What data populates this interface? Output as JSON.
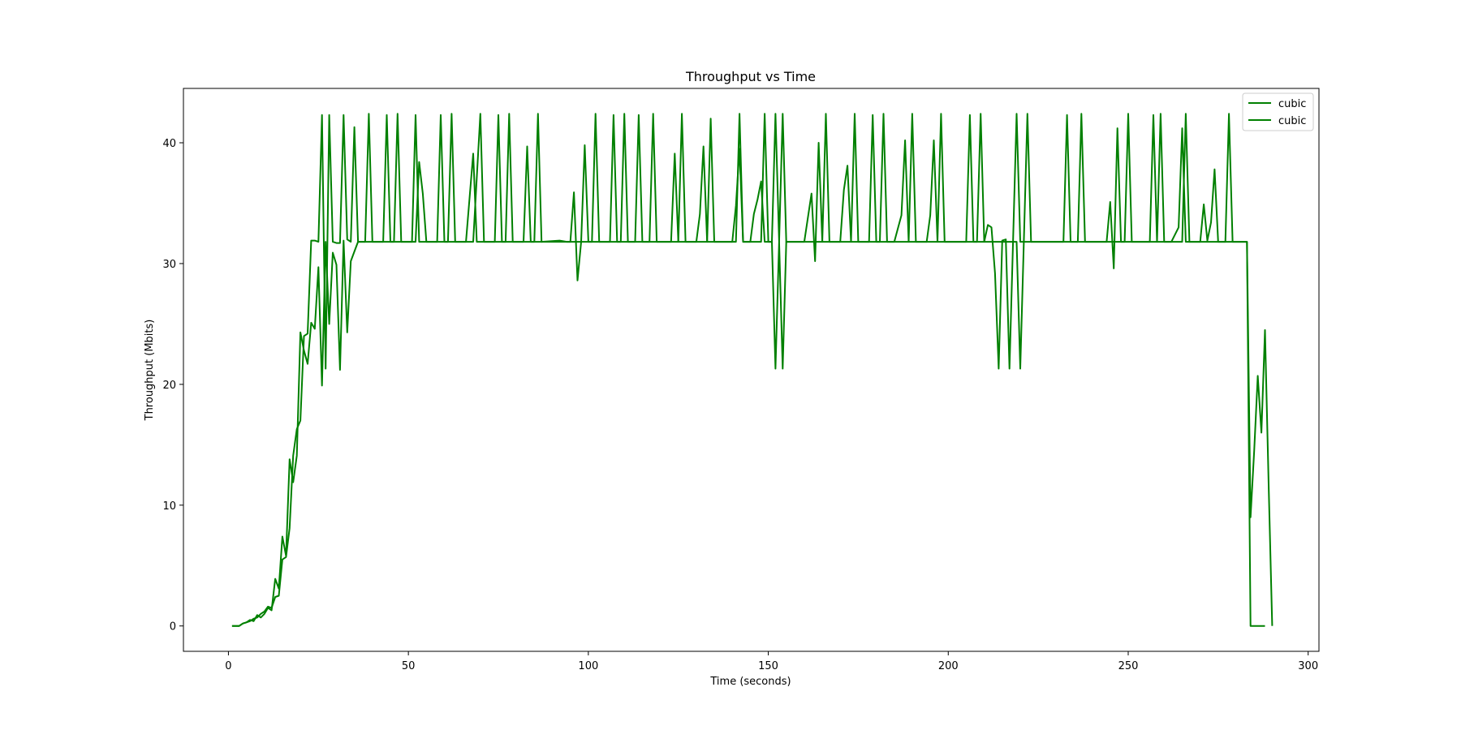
{
  "chart_data": {
    "type": "line",
    "title": "Throughput vs Time",
    "xlabel": "Time (seconds)",
    "ylabel": "Throughput (Mbits)",
    "xlim": [
      -12.5,
      303
    ],
    "ylim": [
      -2.1,
      44.5
    ],
    "xticks": [
      0,
      50,
      100,
      150,
      200,
      250,
      300
    ],
    "yticks": [
      0,
      10,
      20,
      30,
      40
    ],
    "grid": false,
    "legend_position": "top-right",
    "series": [
      {
        "name": "cubic",
        "color": "#008000",
        "points": [
          [
            1,
            0
          ],
          [
            2,
            0
          ],
          [
            3,
            0
          ],
          [
            4,
            0.2
          ],
          [
            5,
            0.3
          ],
          [
            6,
            0.5
          ],
          [
            7,
            0.4
          ],
          [
            8,
            0.9
          ],
          [
            9,
            0.7
          ],
          [
            10,
            1.0
          ],
          [
            11,
            1.5
          ],
          [
            12,
            1.3
          ],
          [
            13,
            3.9
          ],
          [
            14,
            3.1
          ],
          [
            15,
            7.4
          ],
          [
            16,
            5.8
          ],
          [
            17,
            13.8
          ],
          [
            18,
            11.9
          ],
          [
            19,
            14.1
          ],
          [
            20,
            24.3
          ],
          [
            21,
            22.8
          ],
          [
            22,
            21.7
          ],
          [
            23,
            25.1
          ],
          [
            24,
            24.6
          ],
          [
            25,
            29.7
          ],
          [
            26,
            19.9
          ],
          [
            27,
            31.8
          ],
          [
            28,
            25.0
          ],
          [
            29,
            30.9
          ],
          [
            30,
            29.9
          ],
          [
            31,
            21.2
          ],
          [
            32,
            31.9
          ],
          [
            33,
            24.3
          ],
          [
            34,
            30.2
          ],
          [
            35,
            31.0
          ],
          [
            36,
            31.8
          ],
          [
            38,
            31.8
          ],
          [
            40,
            31.8
          ],
          [
            45,
            31.8
          ],
          [
            50,
            31.8
          ],
          [
            52,
            31.8
          ],
          [
            53,
            38.4
          ],
          [
            54,
            35.8
          ],
          [
            55,
            31.8
          ],
          [
            60,
            31.8
          ],
          [
            66,
            31.8
          ],
          [
            68,
            39.1
          ],
          [
            69,
            31.8
          ],
          [
            80,
            31.8
          ],
          [
            82,
            31.8
          ],
          [
            83,
            39.7
          ],
          [
            84,
            31.8
          ],
          [
            95,
            31.8
          ],
          [
            96,
            35.9
          ],
          [
            97,
            28.6
          ],
          [
            98,
            31.8
          ],
          [
            99,
            39.8
          ],
          [
            100,
            31.8
          ],
          [
            110,
            31.8
          ],
          [
            120,
            31.8
          ],
          [
            123,
            31.8
          ],
          [
            124,
            39.1
          ],
          [
            125,
            31.8
          ],
          [
            130,
            31.8
          ],
          [
            131,
            34.1
          ],
          [
            132,
            39.7
          ],
          [
            133,
            31.8
          ],
          [
            140,
            31.8
          ],
          [
            141,
            34.8
          ],
          [
            142,
            39.5
          ],
          [
            143,
            31.8
          ],
          [
            145,
            31.8
          ],
          [
            146,
            34.1
          ],
          [
            147,
            35.3
          ],
          [
            148,
            36.8
          ],
          [
            149,
            31.8
          ],
          [
            151,
            31.8
          ],
          [
            152,
            21.3
          ],
          [
            153,
            31.8
          ],
          [
            154,
            21.3
          ],
          [
            155,
            31.8
          ],
          [
            160,
            31.8
          ],
          [
            162,
            35.8
          ],
          [
            163,
            30.2
          ],
          [
            164,
            40.0
          ],
          [
            165,
            31.8
          ],
          [
            170,
            31.8
          ],
          [
            171,
            36.1
          ],
          [
            172,
            38.1
          ],
          [
            173,
            31.8
          ],
          [
            180,
            31.8
          ],
          [
            185,
            31.8
          ],
          [
            187,
            34.0
          ],
          [
            188,
            40.2
          ],
          [
            189,
            31.8
          ],
          [
            194,
            31.8
          ],
          [
            195,
            34.0
          ],
          [
            196,
            40.2
          ],
          [
            197,
            31.8
          ],
          [
            205,
            31.8
          ],
          [
            210,
            31.8
          ],
          [
            211,
            33.2
          ],
          [
            212,
            33.0
          ],
          [
            213,
            29.2
          ],
          [
            214,
            21.3
          ],
          [
            215,
            31.9
          ],
          [
            216,
            32.0
          ],
          [
            217,
            21.3
          ],
          [
            218,
            31.8
          ],
          [
            219,
            31.8
          ],
          [
            220,
            21.3
          ],
          [
            221,
            31.8
          ],
          [
            230,
            31.8
          ],
          [
            240,
            31.8
          ],
          [
            244,
            31.8
          ],
          [
            245,
            35.1
          ],
          [
            246,
            29.6
          ],
          [
            247,
            41.2
          ],
          [
            248,
            31.8
          ],
          [
            255,
            31.8
          ],
          [
            262,
            31.8
          ],
          [
            264,
            33.0
          ],
          [
            265,
            41.2
          ],
          [
            266,
            31.8
          ],
          [
            270,
            31.8
          ],
          [
            271,
            34.9
          ],
          [
            272,
            31.9
          ],
          [
            273,
            33.4
          ],
          [
            274,
            37.8
          ],
          [
            275,
            31.8
          ],
          [
            280,
            31.8
          ],
          [
            282,
            31.8
          ],
          [
            283,
            31.8
          ],
          [
            284,
            0
          ],
          [
            285,
            0
          ],
          [
            286,
            0
          ],
          [
            287,
            0
          ],
          [
            288,
            0
          ]
        ]
      },
      {
        "name": "cubic",
        "color": "#008000",
        "points": [
          [
            1,
            0
          ],
          [
            2,
            0
          ],
          [
            3,
            0
          ],
          [
            4,
            0.2
          ],
          [
            5,
            0.3
          ],
          [
            6,
            0.4
          ],
          [
            7,
            0.6
          ],
          [
            8,
            0.7
          ],
          [
            9,
            1.0
          ],
          [
            10,
            1.2
          ],
          [
            11,
            1.6
          ],
          [
            12,
            1.5
          ],
          [
            13,
            2.4
          ],
          [
            14,
            2.5
          ],
          [
            15,
            5.5
          ],
          [
            16,
            5.7
          ],
          [
            17,
            8.1
          ],
          [
            18,
            14.1
          ],
          [
            19,
            16.3
          ],
          [
            20,
            17.0
          ],
          [
            21,
            24.0
          ],
          [
            22,
            24.2
          ],
          [
            23,
            31.9
          ],
          [
            24,
            31.9
          ],
          [
            25,
            31.8
          ],
          [
            26,
            42.3
          ],
          [
            27,
            21.3
          ],
          [
            28,
            42.3
          ],
          [
            29,
            31.8
          ],
          [
            30,
            31.7
          ],
          [
            31,
            31.7
          ],
          [
            32,
            42.3
          ],
          [
            33,
            32.0
          ],
          [
            34,
            31.8
          ],
          [
            35,
            41.3
          ],
          [
            36,
            31.8
          ],
          [
            38,
            31.8
          ],
          [
            39,
            42.4
          ],
          [
            40,
            31.8
          ],
          [
            43,
            31.8
          ],
          [
            44,
            42.3
          ],
          [
            45,
            31.8
          ],
          [
            46,
            31.8
          ],
          [
            47,
            42.4
          ],
          [
            48,
            31.8
          ],
          [
            51,
            31.8
          ],
          [
            52,
            42.3
          ],
          [
            53,
            31.8
          ],
          [
            58,
            31.8
          ],
          [
            59,
            42.3
          ],
          [
            60,
            31.8
          ],
          [
            61,
            31.8
          ],
          [
            62,
            42.4
          ],
          [
            63,
            31.8
          ],
          [
            68,
            31.8
          ],
          [
            70,
            42.4
          ],
          [
            71,
            31.8
          ],
          [
            74,
            31.8
          ],
          [
            75,
            42.3
          ],
          [
            76,
            31.8
          ],
          [
            77,
            31.8
          ],
          [
            78,
            42.4
          ],
          [
            79,
            31.8
          ],
          [
            85,
            31.8
          ],
          [
            86,
            42.4
          ],
          [
            87,
            31.8
          ],
          [
            92,
            31.9
          ],
          [
            94,
            31.8
          ],
          [
            101,
            31.8
          ],
          [
            102,
            42.4
          ],
          [
            103,
            31.8
          ],
          [
            106,
            31.8
          ],
          [
            107,
            42.3
          ],
          [
            108,
            31.8
          ],
          [
            109,
            31.8
          ],
          [
            110,
            42.4
          ],
          [
            111,
            31.8
          ],
          [
            113,
            31.8
          ],
          [
            114,
            42.3
          ],
          [
            115,
            31.8
          ],
          [
            117,
            31.8
          ],
          [
            118,
            42.4
          ],
          [
            119,
            31.8
          ],
          [
            125,
            31.8
          ],
          [
            126,
            42.4
          ],
          [
            127,
            31.8
          ],
          [
            133,
            31.8
          ],
          [
            134,
            42.0
          ],
          [
            135,
            31.8
          ],
          [
            141,
            31.8
          ],
          [
            142,
            42.4
          ],
          [
            143,
            31.8
          ],
          [
            148,
            31.8
          ],
          [
            149,
            42.4
          ],
          [
            150,
            31.8
          ],
          [
            151,
            31.8
          ],
          [
            152,
            42.4
          ],
          [
            153,
            31.8
          ],
          [
            154,
            42.4
          ],
          [
            155,
            31.8
          ],
          [
            165,
            31.8
          ],
          [
            166,
            42.4
          ],
          [
            167,
            31.8
          ],
          [
            173,
            31.8
          ],
          [
            174,
            42.4
          ],
          [
            175,
            31.8
          ],
          [
            178,
            31.8
          ],
          [
            179,
            42.3
          ],
          [
            180,
            31.8
          ],
          [
            181,
            31.8
          ],
          [
            182,
            42.4
          ],
          [
            183,
            31.8
          ],
          [
            189,
            31.8
          ],
          [
            190,
            42.4
          ],
          [
            191,
            31.8
          ],
          [
            197,
            31.8
          ],
          [
            198,
            42.4
          ],
          [
            199,
            31.8
          ],
          [
            205,
            31.8
          ],
          [
            206,
            42.3
          ],
          [
            207,
            31.8
          ],
          [
            208,
            31.8
          ],
          [
            209,
            42.4
          ],
          [
            210,
            31.8
          ],
          [
            218,
            31.8
          ],
          [
            219,
            42.4
          ],
          [
            220,
            31.8
          ],
          [
            221,
            31.8
          ],
          [
            222,
            42.4
          ],
          [
            223,
            31.8
          ],
          [
            232,
            31.8
          ],
          [
            233,
            42.3
          ],
          [
            234,
            31.8
          ],
          [
            236,
            31.8
          ],
          [
            237,
            42.4
          ],
          [
            238,
            31.8
          ],
          [
            249,
            31.8
          ],
          [
            250,
            42.4
          ],
          [
            251,
            31.8
          ],
          [
            256,
            31.8
          ],
          [
            257,
            42.3
          ],
          [
            258,
            31.8
          ],
          [
            259,
            42.4
          ],
          [
            260,
            31.8
          ],
          [
            265,
            31.8
          ],
          [
            266,
            42.4
          ],
          [
            267,
            31.8
          ],
          [
            277,
            31.8
          ],
          [
            278,
            42.4
          ],
          [
            279,
            31.8
          ],
          [
            283,
            31.8
          ],
          [
            284,
            9.0
          ],
          [
            285,
            14.5
          ],
          [
            286,
            20.7
          ],
          [
            287,
            16.0
          ],
          [
            288,
            24.5
          ],
          [
            289,
            12.0
          ],
          [
            290,
            0
          ]
        ]
      }
    ]
  }
}
